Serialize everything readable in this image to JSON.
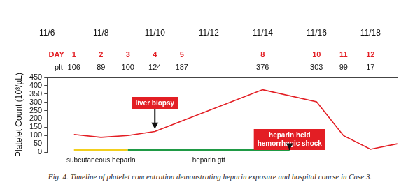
{
  "chart_data": {
    "type": "line",
    "caption": "Fig. 4. Timeline of platelet concentration demonstrating heparin exposure and hospital course in Case 3.",
    "y_label": "Platelet Count (10³/µL)",
    "x": [
      1,
      2,
      3,
      4,
      5,
      8,
      10,
      11,
      12,
      13
    ],
    "values": [
      106,
      89,
      100,
      124,
      187,
      376,
      303,
      99,
      17,
      50
    ],
    "value_labels": [
      "106",
      "89",
      "100",
      "124",
      "187",
      "376",
      "303",
      "99",
      "17",
      null
    ],
    "value_row_label": "plt",
    "data_labels": true,
    "color": "#e31e24",
    "marker": "none",
    "xlim": [
      0,
      13
    ],
    "xticks": [
      {
        "value": 0,
        "label": "11/6"
      },
      {
        "value": 2,
        "label": "11/8"
      },
      {
        "value": 4,
        "label": "11/10"
      },
      {
        "value": 6,
        "label": "11/12"
      },
      {
        "value": 8,
        "label": "11/14"
      },
      {
        "value": 10,
        "label": "11/16"
      },
      {
        "value": 12,
        "label": "11/18"
      }
    ],
    "day_row": {
      "label": "DAY",
      "ticks": [
        1,
        2,
        3,
        4,
        5,
        8,
        10,
        11,
        12
      ],
      "color": "#e31e24"
    },
    "ylim": [
      0,
      450
    ],
    "yticks": [
      0,
      50,
      100,
      150,
      200,
      250,
      300,
      350,
      400,
      450
    ],
    "grid": false,
    "legend": "none",
    "periods": [
      {
        "label": "subcutaneous heparin",
        "from": 1,
        "to": 3,
        "color": "#f2cf1d"
      },
      {
        "label": "heparin gtt",
        "from": 3,
        "to": 9,
        "color": "#1f9a45"
      }
    ],
    "annotations": [
      {
        "text": [
          "liver biopsy"
        ],
        "x": 4,
        "y": 140,
        "color": "#e31e24"
      },
      {
        "text": [
          "heparin held",
          "hemorrhagic shock"
        ],
        "x": 9,
        "y": 15,
        "color": "#e31e24"
      }
    ]
  }
}
